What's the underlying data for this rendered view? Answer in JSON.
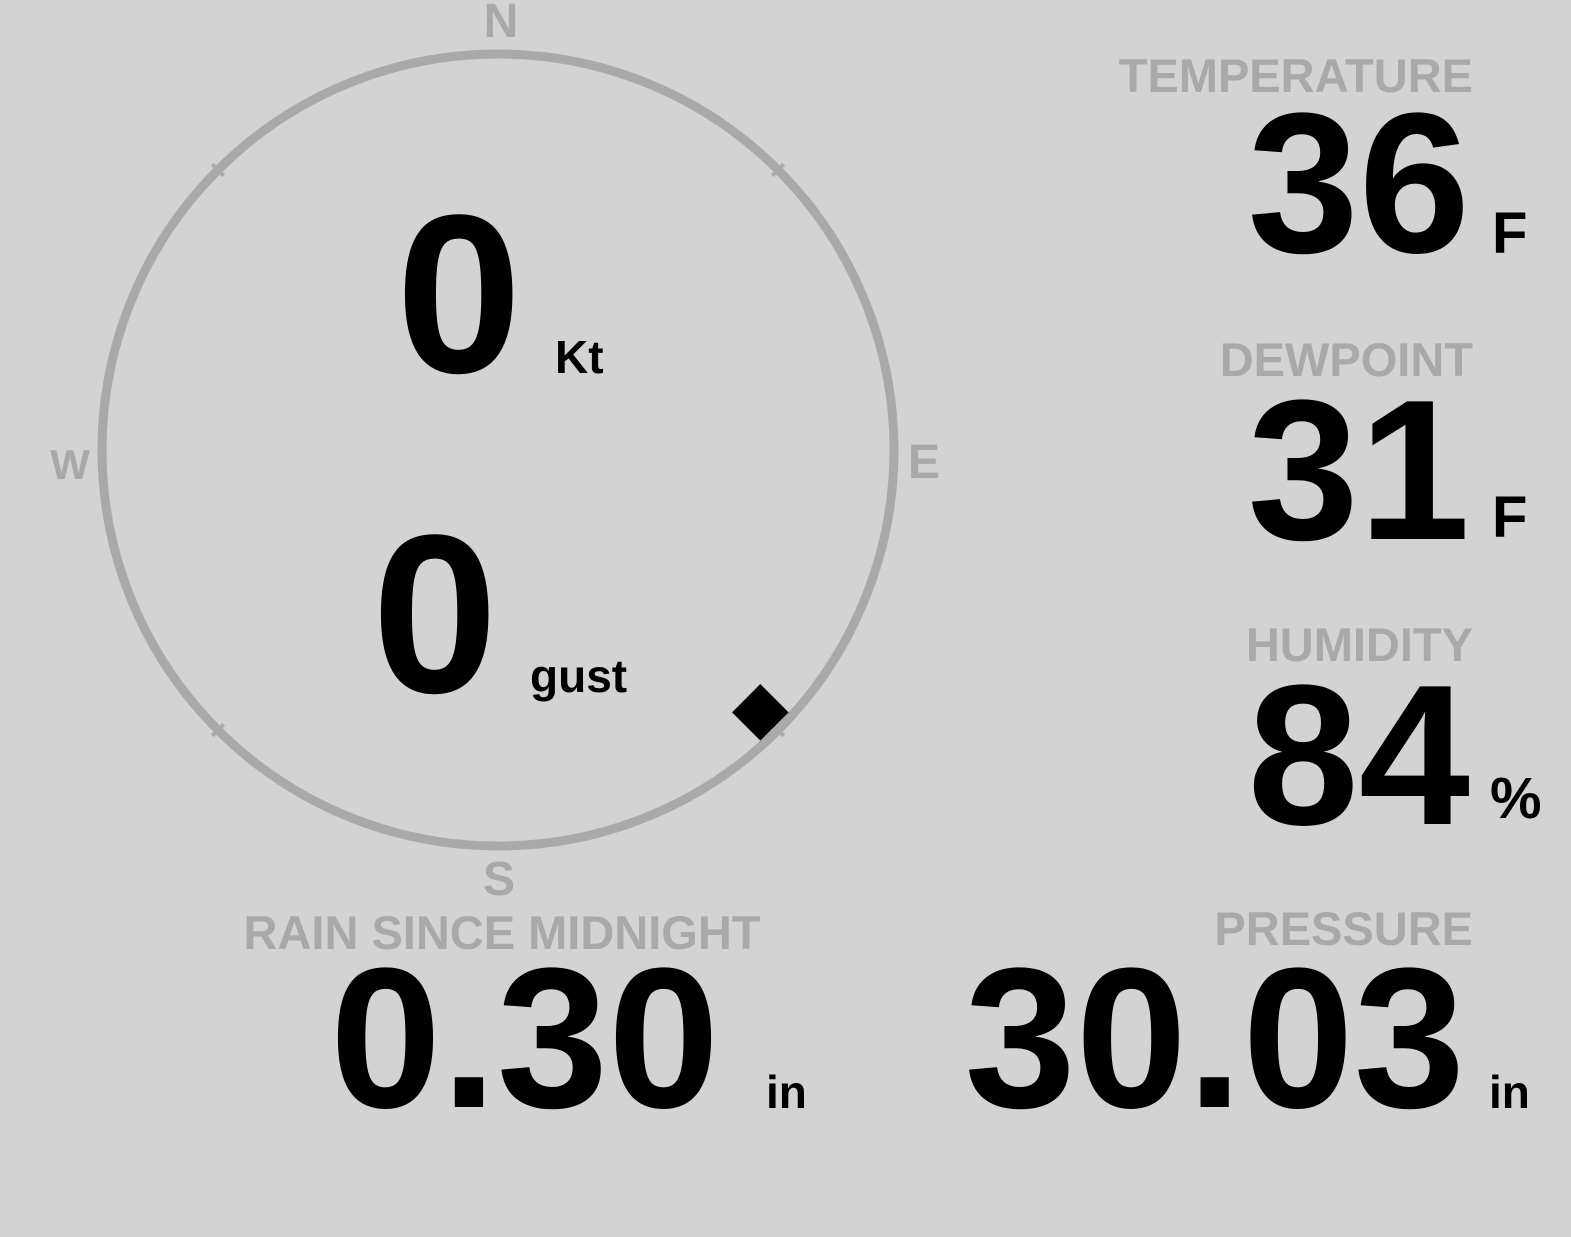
{
  "colors": {
    "background": "#d3d3d3",
    "label": "#a9a9a9",
    "value": "#000000",
    "compass_ring": "#a9a9a9"
  },
  "compass": {
    "north": "N",
    "south": "S",
    "east": "E",
    "west": "W",
    "wind_direction_deg": 135,
    "marker_icon": "diamond-icon"
  },
  "wind": {
    "speed": "0",
    "speed_unit": "Kt",
    "gust": "0",
    "gust_unit": "gust"
  },
  "temperature": {
    "label": "TEMPERATURE",
    "value": "36",
    "unit": "F"
  },
  "dewpoint": {
    "label": "DEWPOINT",
    "value": "31",
    "unit": "F"
  },
  "humidity": {
    "label": "HUMIDITY",
    "value": "84",
    "unit": "%"
  },
  "rain": {
    "label": "RAIN SINCE MIDNIGHT",
    "value": "0.30",
    "unit": "in"
  },
  "pressure": {
    "label": "PRESSURE",
    "value": "30.03",
    "unit": "in"
  }
}
